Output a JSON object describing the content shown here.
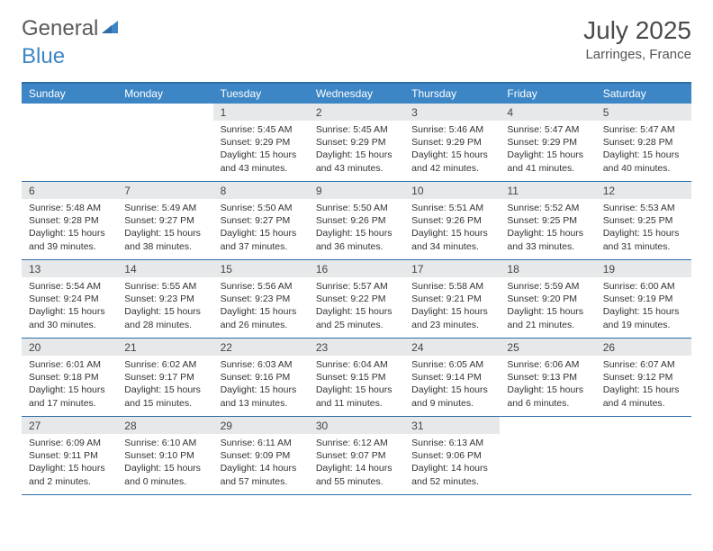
{
  "logo": {
    "word1": "General",
    "word2": "Blue"
  },
  "title": "July 2025",
  "location": "Larringes, France",
  "colors": {
    "header_bg": "#3d86c6",
    "border": "#2e6ea8",
    "daynum_bg": "#e6e8ea",
    "text": "#333333",
    "title_color": "#4a4a4a"
  },
  "weekdays": [
    "Sunday",
    "Monday",
    "Tuesday",
    "Wednesday",
    "Thursday",
    "Friday",
    "Saturday"
  ],
  "weeks": [
    [
      {
        "n": "",
        "sr": "",
        "ss": "",
        "dl": ""
      },
      {
        "n": "",
        "sr": "",
        "ss": "",
        "dl": ""
      },
      {
        "n": "1",
        "sr": "Sunrise: 5:45 AM",
        "ss": "Sunset: 9:29 PM",
        "dl": "Daylight: 15 hours and 43 minutes."
      },
      {
        "n": "2",
        "sr": "Sunrise: 5:45 AM",
        "ss": "Sunset: 9:29 PM",
        "dl": "Daylight: 15 hours and 43 minutes."
      },
      {
        "n": "3",
        "sr": "Sunrise: 5:46 AM",
        "ss": "Sunset: 9:29 PM",
        "dl": "Daylight: 15 hours and 42 minutes."
      },
      {
        "n": "4",
        "sr": "Sunrise: 5:47 AM",
        "ss": "Sunset: 9:29 PM",
        "dl": "Daylight: 15 hours and 41 minutes."
      },
      {
        "n": "5",
        "sr": "Sunrise: 5:47 AM",
        "ss": "Sunset: 9:28 PM",
        "dl": "Daylight: 15 hours and 40 minutes."
      }
    ],
    [
      {
        "n": "6",
        "sr": "Sunrise: 5:48 AM",
        "ss": "Sunset: 9:28 PM",
        "dl": "Daylight: 15 hours and 39 minutes."
      },
      {
        "n": "7",
        "sr": "Sunrise: 5:49 AM",
        "ss": "Sunset: 9:27 PM",
        "dl": "Daylight: 15 hours and 38 minutes."
      },
      {
        "n": "8",
        "sr": "Sunrise: 5:50 AM",
        "ss": "Sunset: 9:27 PM",
        "dl": "Daylight: 15 hours and 37 minutes."
      },
      {
        "n": "9",
        "sr": "Sunrise: 5:50 AM",
        "ss": "Sunset: 9:26 PM",
        "dl": "Daylight: 15 hours and 36 minutes."
      },
      {
        "n": "10",
        "sr": "Sunrise: 5:51 AM",
        "ss": "Sunset: 9:26 PM",
        "dl": "Daylight: 15 hours and 34 minutes."
      },
      {
        "n": "11",
        "sr": "Sunrise: 5:52 AM",
        "ss": "Sunset: 9:25 PM",
        "dl": "Daylight: 15 hours and 33 minutes."
      },
      {
        "n": "12",
        "sr": "Sunrise: 5:53 AM",
        "ss": "Sunset: 9:25 PM",
        "dl": "Daylight: 15 hours and 31 minutes."
      }
    ],
    [
      {
        "n": "13",
        "sr": "Sunrise: 5:54 AM",
        "ss": "Sunset: 9:24 PM",
        "dl": "Daylight: 15 hours and 30 minutes."
      },
      {
        "n": "14",
        "sr": "Sunrise: 5:55 AM",
        "ss": "Sunset: 9:23 PM",
        "dl": "Daylight: 15 hours and 28 minutes."
      },
      {
        "n": "15",
        "sr": "Sunrise: 5:56 AM",
        "ss": "Sunset: 9:23 PM",
        "dl": "Daylight: 15 hours and 26 minutes."
      },
      {
        "n": "16",
        "sr": "Sunrise: 5:57 AM",
        "ss": "Sunset: 9:22 PM",
        "dl": "Daylight: 15 hours and 25 minutes."
      },
      {
        "n": "17",
        "sr": "Sunrise: 5:58 AM",
        "ss": "Sunset: 9:21 PM",
        "dl": "Daylight: 15 hours and 23 minutes."
      },
      {
        "n": "18",
        "sr": "Sunrise: 5:59 AM",
        "ss": "Sunset: 9:20 PM",
        "dl": "Daylight: 15 hours and 21 minutes."
      },
      {
        "n": "19",
        "sr": "Sunrise: 6:00 AM",
        "ss": "Sunset: 9:19 PM",
        "dl": "Daylight: 15 hours and 19 minutes."
      }
    ],
    [
      {
        "n": "20",
        "sr": "Sunrise: 6:01 AM",
        "ss": "Sunset: 9:18 PM",
        "dl": "Daylight: 15 hours and 17 minutes."
      },
      {
        "n": "21",
        "sr": "Sunrise: 6:02 AM",
        "ss": "Sunset: 9:17 PM",
        "dl": "Daylight: 15 hours and 15 minutes."
      },
      {
        "n": "22",
        "sr": "Sunrise: 6:03 AM",
        "ss": "Sunset: 9:16 PM",
        "dl": "Daylight: 15 hours and 13 minutes."
      },
      {
        "n": "23",
        "sr": "Sunrise: 6:04 AM",
        "ss": "Sunset: 9:15 PM",
        "dl": "Daylight: 15 hours and 11 minutes."
      },
      {
        "n": "24",
        "sr": "Sunrise: 6:05 AM",
        "ss": "Sunset: 9:14 PM",
        "dl": "Daylight: 15 hours and 9 minutes."
      },
      {
        "n": "25",
        "sr": "Sunrise: 6:06 AM",
        "ss": "Sunset: 9:13 PM",
        "dl": "Daylight: 15 hours and 6 minutes."
      },
      {
        "n": "26",
        "sr": "Sunrise: 6:07 AM",
        "ss": "Sunset: 9:12 PM",
        "dl": "Daylight: 15 hours and 4 minutes."
      }
    ],
    [
      {
        "n": "27",
        "sr": "Sunrise: 6:09 AM",
        "ss": "Sunset: 9:11 PM",
        "dl": "Daylight: 15 hours and 2 minutes."
      },
      {
        "n": "28",
        "sr": "Sunrise: 6:10 AM",
        "ss": "Sunset: 9:10 PM",
        "dl": "Daylight: 15 hours and 0 minutes."
      },
      {
        "n": "29",
        "sr": "Sunrise: 6:11 AM",
        "ss": "Sunset: 9:09 PM",
        "dl": "Daylight: 14 hours and 57 minutes."
      },
      {
        "n": "30",
        "sr": "Sunrise: 6:12 AM",
        "ss": "Sunset: 9:07 PM",
        "dl": "Daylight: 14 hours and 55 minutes."
      },
      {
        "n": "31",
        "sr": "Sunrise: 6:13 AM",
        "ss": "Sunset: 9:06 PM",
        "dl": "Daylight: 14 hours and 52 minutes."
      },
      {
        "n": "",
        "sr": "",
        "ss": "",
        "dl": ""
      },
      {
        "n": "",
        "sr": "",
        "ss": "",
        "dl": ""
      }
    ]
  ]
}
